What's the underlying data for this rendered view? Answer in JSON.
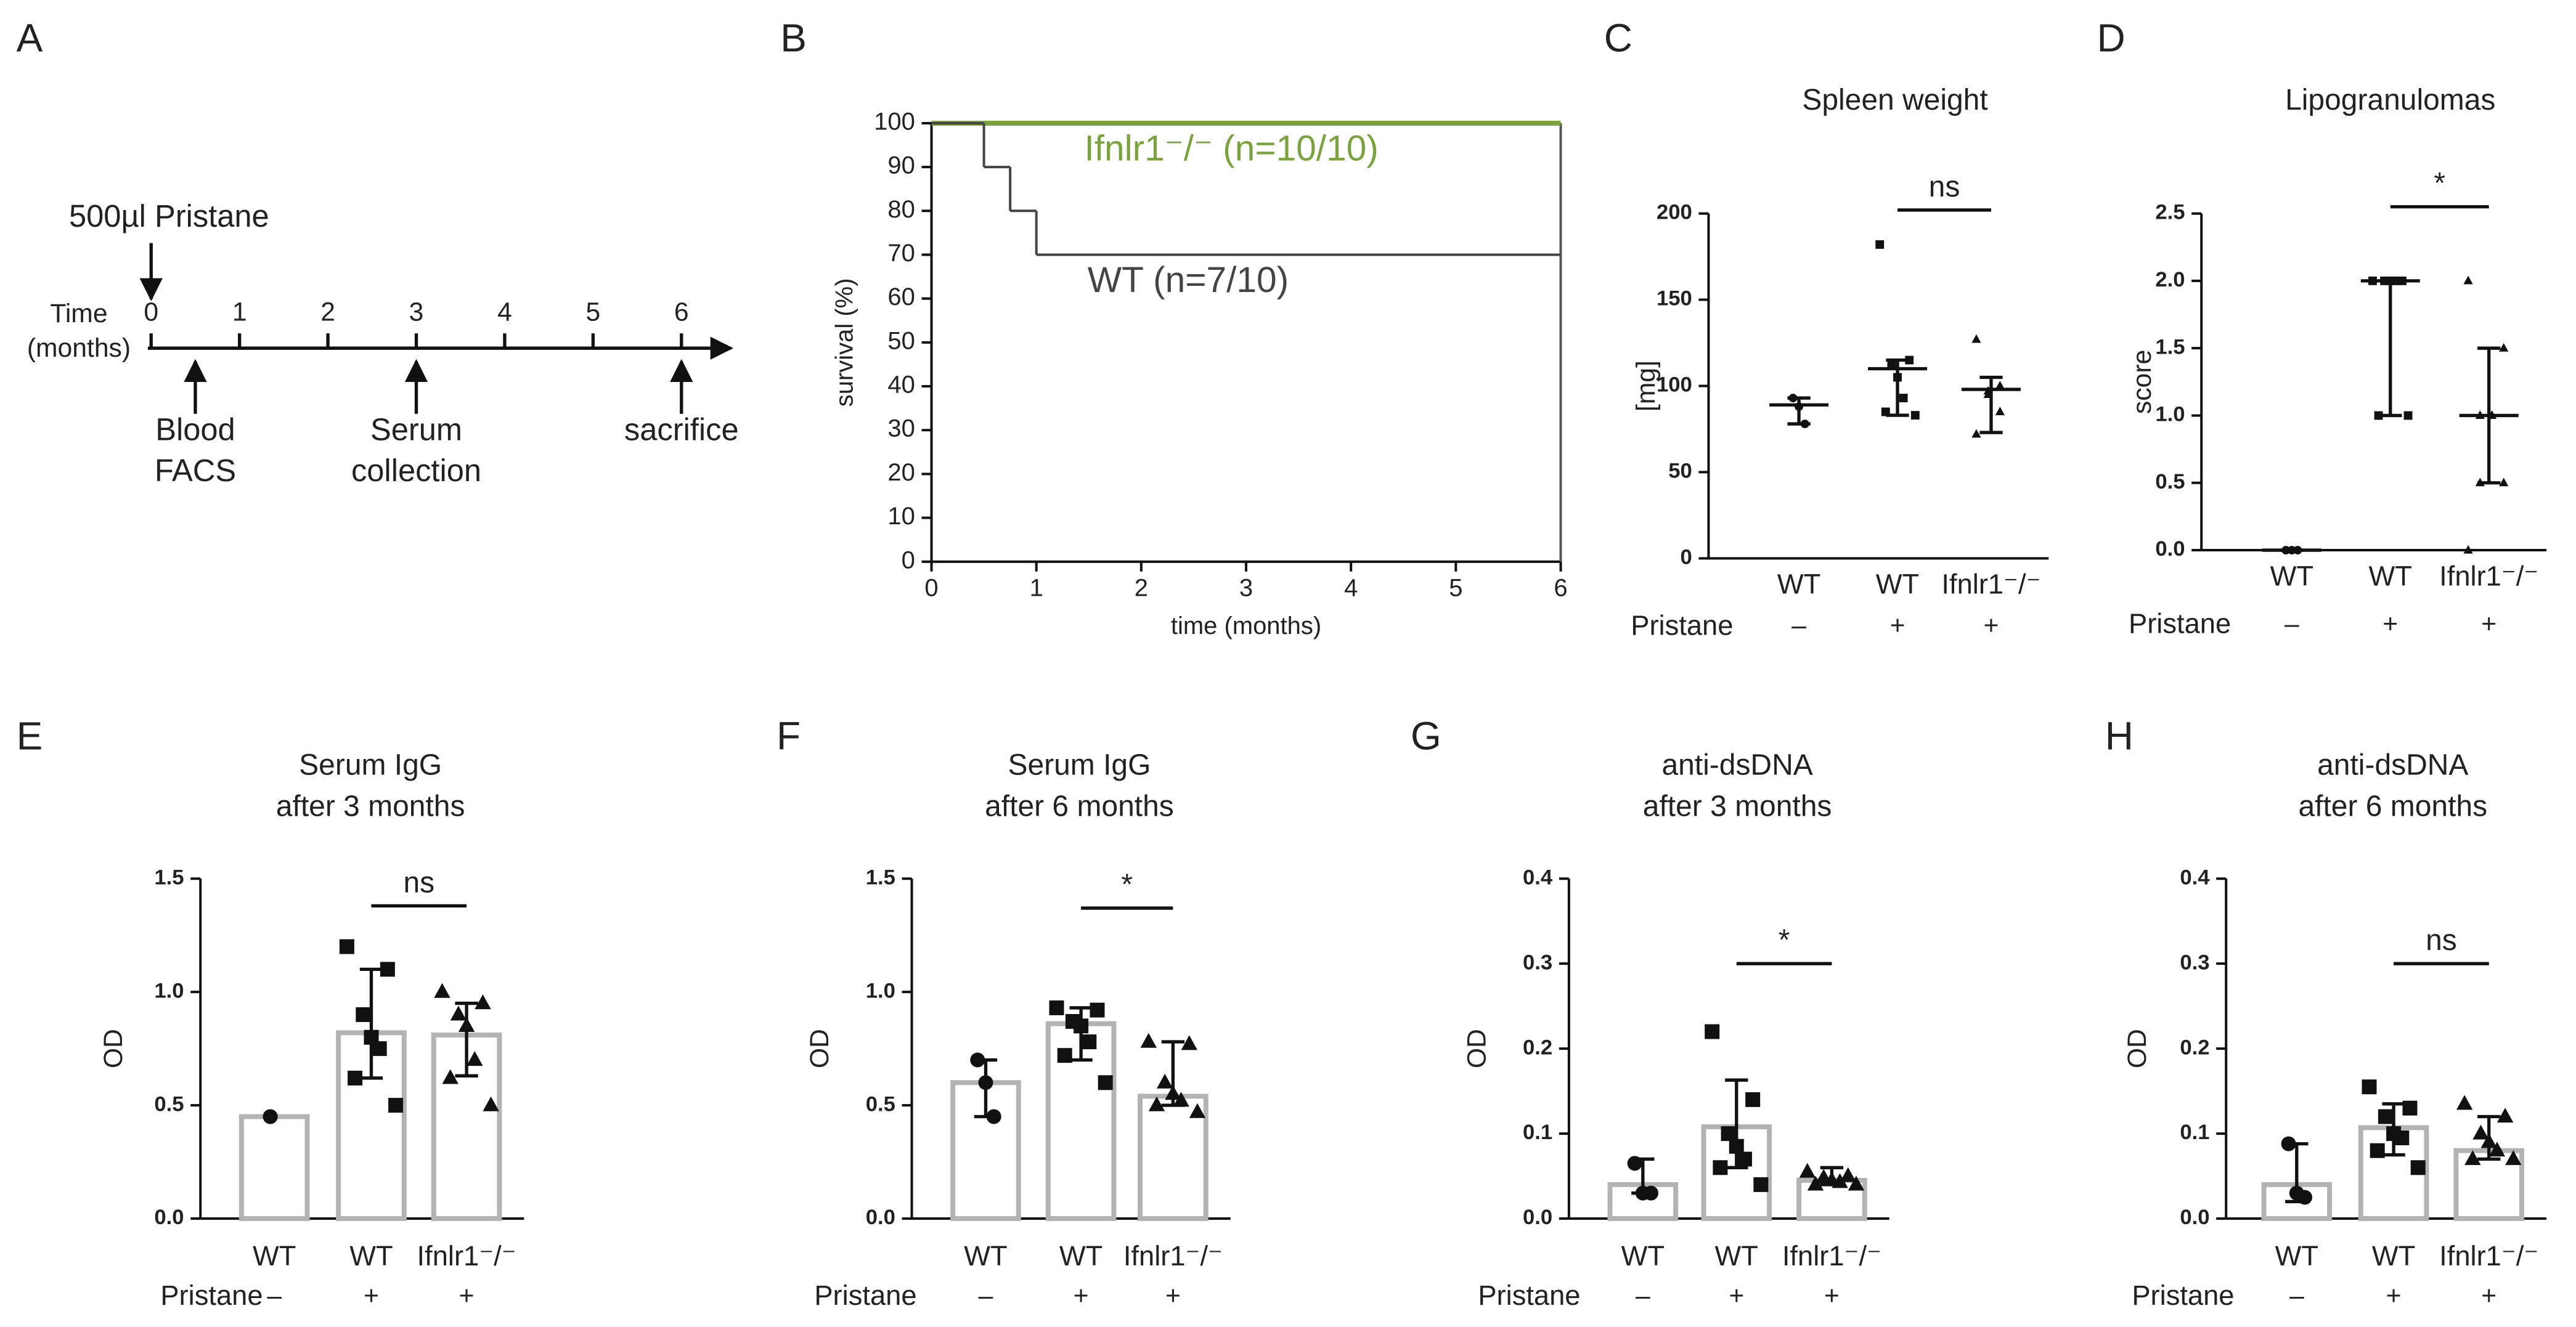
{
  "panel_labels": [
    "A",
    "B",
    "C",
    "D",
    "E",
    "F",
    "G",
    "H"
  ],
  "timeline": {
    "injection": "500µl Pristane",
    "axis_label": [
      "Time",
      "(months)"
    ],
    "ticks": [
      0,
      1,
      2,
      3,
      4,
      5,
      6
    ],
    "events": [
      {
        "label": [
          "Blood",
          "FACS"
        ],
        "at": 0.5
      },
      {
        "label": [
          "Serum",
          "collection"
        ],
        "at": 3
      },
      {
        "label": [
          "sacrifice"
        ],
        "at": 6
      }
    ]
  },
  "chart_data": [
    {
      "type": "line",
      "xlabel": "time (months)",
      "ylabel": "survival (%)",
      "xlim": [
        0,
        6
      ],
      "ylim": [
        0,
        100
      ],
      "xticks": [
        0,
        1,
        2,
        3,
        4,
        5,
        6
      ],
      "yticks": [
        0,
        10,
        20,
        30,
        40,
        50,
        60,
        70,
        80,
        90,
        100
      ],
      "series": [
        {
          "name": "Ifnlr1⁻/⁻ (n=10/10)",
          "color": "#7aa23f",
          "x": [
            0
          ],
          "values": [
            100
          ]
        },
        {
          "name": "WT (n=7/10)",
          "color": "#444444",
          "x": [
            0,
            0.5,
            0.75,
            1
          ],
          "values": [
            100,
            90,
            80,
            70
          ]
        }
      ]
    },
    {
      "type": "scatter",
      "title": [
        "Spleen weight"
      ],
      "ylabel": "[mg]",
      "ylim": [
        0,
        200
      ],
      "yticks": [
        0,
        50,
        100,
        150,
        200
      ],
      "categories": [
        "WT",
        "WT",
        "Ifnlr1⁻/⁻"
      ],
      "row_label": "Pristane",
      "row_values": [
        "–",
        "+",
        "+"
      ],
      "markers": [
        "circle",
        "square",
        "triangle"
      ],
      "points": [
        [
          93,
          88,
          78
        ],
        [
          182,
          115,
          113,
          105,
          93,
          85,
          83
        ],
        [
          127,
          100,
          97,
          95,
          85,
          72
        ]
      ],
      "values": [
        89,
        110,
        98
      ],
      "error_low": [
        78,
        83,
        73
      ],
      "error_high": [
        93,
        115,
        105
      ],
      "significance": {
        "label": "ns",
        "from": 1,
        "to": 2,
        "y": 202
      }
    },
    {
      "type": "scatter",
      "title": [
        "Lipogranulomas"
      ],
      "ylabel": "score",
      "ylim": [
        0,
        2.5
      ],
      "yticks": [
        {
          "value": 0,
          "label": "0.0"
        },
        {
          "value": 0.5,
          "label": "0.5"
        },
        {
          "value": 1,
          "label": "1.0"
        },
        {
          "value": 1.5,
          "label": "1.5"
        },
        {
          "value": 2,
          "label": "2.0"
        },
        {
          "value": 2.5,
          "label": "2.5"
        }
      ],
      "categories": [
        "WT",
        "WT",
        "Ifnlr1⁻/⁻"
      ],
      "row_label": "Pristane",
      "row_values": [
        "–",
        "+",
        "+"
      ],
      "markers": [
        "circle",
        "square",
        "triangle"
      ],
      "points": [
        [
          0,
          0,
          0
        ],
        [
          2,
          2,
          2,
          2,
          2,
          1,
          1
        ],
        [
          2,
          1.5,
          1,
          1,
          1,
          0.5,
          0.5,
          0
        ]
      ],
      "values": [
        0,
        2,
        1
      ],
      "error_low": [
        0,
        1,
        0.5
      ],
      "error_high": [
        0,
        2,
        1.5
      ],
      "significance": {
        "label": "*",
        "from": 1,
        "to": 2,
        "y": 2.55
      }
    },
    {
      "type": "bar",
      "title": [
        "Serum IgG",
        "after 3 months"
      ],
      "ylabel": "OD",
      "ylim": [
        0,
        1.5
      ],
      "yticks": [
        {
          "value": 0,
          "label": "0.0"
        },
        {
          "value": 0.5,
          "label": "0.5"
        },
        {
          "value": 1,
          "label": "1.0"
        },
        {
          "value": 1.5,
          "label": "1.5"
        }
      ],
      "categories": [
        "WT",
        "WT",
        "Ifnlr1⁻/⁻"
      ],
      "row_label": "Pristane",
      "row_values": [
        "–",
        "+",
        "+"
      ],
      "markers": [
        "circle",
        "square",
        "triangle"
      ],
      "points": [
        [
          0.45,
          0.45
        ],
        [
          1.2,
          1.1,
          0.9,
          0.8,
          0.75,
          0.62,
          0.5
        ],
        [
          1.0,
          0.95,
          0.9,
          0.85,
          0.7,
          0.62,
          0.5
        ]
      ],
      "values": [
        0.45,
        0.82,
        0.81
      ],
      "error_low": [
        null,
        0.62,
        0.63
      ],
      "error_high": [
        null,
        1.1,
        0.95
      ],
      "significance": {
        "label": "ns",
        "from": 1,
        "to": 2,
        "y": 1.38
      }
    },
    {
      "type": "bar",
      "title": [
        "Serum IgG",
        "after 6 months"
      ],
      "ylabel": "OD",
      "ylim": [
        0,
        1.5
      ],
      "yticks": [
        {
          "value": 0,
          "label": "0.0"
        },
        {
          "value": 0.5,
          "label": "0.5"
        },
        {
          "value": 1,
          "label": "1.0"
        },
        {
          "value": 1.5,
          "label": "1.5"
        }
      ],
      "categories": [
        "WT",
        "WT",
        "Ifnlr1⁻/⁻"
      ],
      "row_label": "Pristane",
      "row_values": [
        "–",
        "+",
        "+"
      ],
      "markers": [
        "circle",
        "square",
        "triangle"
      ],
      "points": [
        [
          0.7,
          0.6,
          0.45
        ],
        [
          0.93,
          0.92,
          0.87,
          0.85,
          0.78,
          0.72,
          0.6
        ],
        [
          0.78,
          0.77,
          0.6,
          0.55,
          0.52,
          0.5,
          0.47
        ]
      ],
      "values": [
        0.6,
        0.86,
        0.54
      ],
      "error_low": [
        0.45,
        0.7,
        0.5
      ],
      "error_high": [
        0.7,
        0.93,
        0.78
      ],
      "significance": {
        "label": "*",
        "from": 1,
        "to": 2,
        "y": 1.37
      }
    },
    {
      "type": "bar",
      "title": [
        "anti-dsDNA",
        "after 3 months"
      ],
      "ylabel": "OD",
      "ylim": [
        0,
        0.4
      ],
      "yticks": [
        {
          "value": 0,
          "label": "0.0"
        },
        0.1,
        0.2,
        0.3,
        0.4
      ],
      "categories": [
        "WT",
        "WT",
        "Ifnlr1⁻/⁻"
      ],
      "row_label": "Pristane",
      "row_values": [
        "–",
        "+",
        "+"
      ],
      "markers": [
        "circle",
        "square",
        "triangle"
      ],
      "points": [
        [
          0.065,
          0.03,
          0.03
        ],
        [
          0.22,
          0.14,
          0.1,
          0.085,
          0.07,
          0.06,
          0.04
        ],
        [
          0.055,
          0.05,
          0.048,
          0.045,
          0.043,
          0.04,
          0.04
        ]
      ],
      "values": [
        0.04,
        0.108,
        0.045
      ],
      "error_low": [
        0.03,
        0.06,
        0.04
      ],
      "error_high": [
        0.07,
        0.163,
        0.06
      ],
      "significance": {
        "label": "*",
        "from": 1,
        "to": 2,
        "y": 0.3
      }
    },
    {
      "type": "bar",
      "title": [
        "anti-dsDNA",
        "after 6 months"
      ],
      "ylabel": "OD",
      "ylim": [
        0,
        0.4
      ],
      "yticks": [
        {
          "value": 0,
          "label": "0.0"
        },
        0.1,
        0.2,
        0.3,
        0.4
      ],
      "categories": [
        "WT",
        "WT",
        "Ifnlr1⁻/⁻"
      ],
      "row_label": "Pristane",
      "row_values": [
        "–",
        "+",
        "+"
      ],
      "markers": [
        "circle",
        "square",
        "triangle"
      ],
      "points": [
        [
          0.088,
          0.03,
          0.025
        ],
        [
          0.155,
          0.13,
          0.12,
          0.1,
          0.095,
          0.08,
          0.06
        ],
        [
          0.135,
          0.12,
          0.1,
          0.09,
          0.08,
          0.07,
          0.07
        ]
      ],
      "values": [
        0.04,
        0.107,
        0.08
      ],
      "error_low": [
        0.02,
        0.075,
        0.07
      ],
      "error_high": [
        0.088,
        0.135,
        0.12
      ],
      "significance": {
        "label": "ns",
        "from": 1,
        "to": 2,
        "y": 0.3
      }
    }
  ]
}
